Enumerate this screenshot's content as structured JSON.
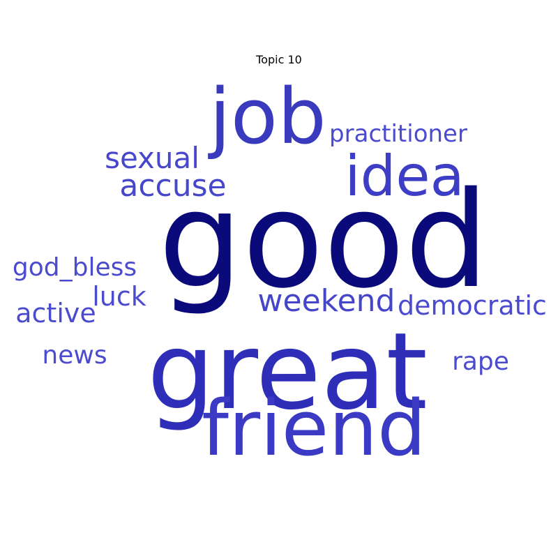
{
  "title": "Topic 10",
  "words": [
    {
      "text": "good",
      "color": "#0a0a7a"
    },
    {
      "text": "great",
      "color": "#2e2eb8"
    },
    {
      "text": "job",
      "color": "#3a3abf"
    },
    {
      "text": "friend",
      "color": "#3a3ac4"
    },
    {
      "text": "idea",
      "color": "#3d3dc6"
    },
    {
      "text": "weekend",
      "color": "#4545c9"
    },
    {
      "text": "sexual",
      "color": "#4747cc"
    },
    {
      "text": "accuse",
      "color": "#4747cc"
    },
    {
      "text": "practitioner",
      "color": "#4b4bcf"
    },
    {
      "text": "democratic",
      "color": "#4b4bcf"
    },
    {
      "text": "god_bless",
      "color": "#4b4bcf"
    },
    {
      "text": "active",
      "color": "#4b4bcf"
    },
    {
      "text": "luck",
      "color": "#4b4bcf"
    },
    {
      "text": "news",
      "color": "#4b4bcf"
    },
    {
      "text": "rape",
      "color": "#4b4bcf"
    }
  ]
}
